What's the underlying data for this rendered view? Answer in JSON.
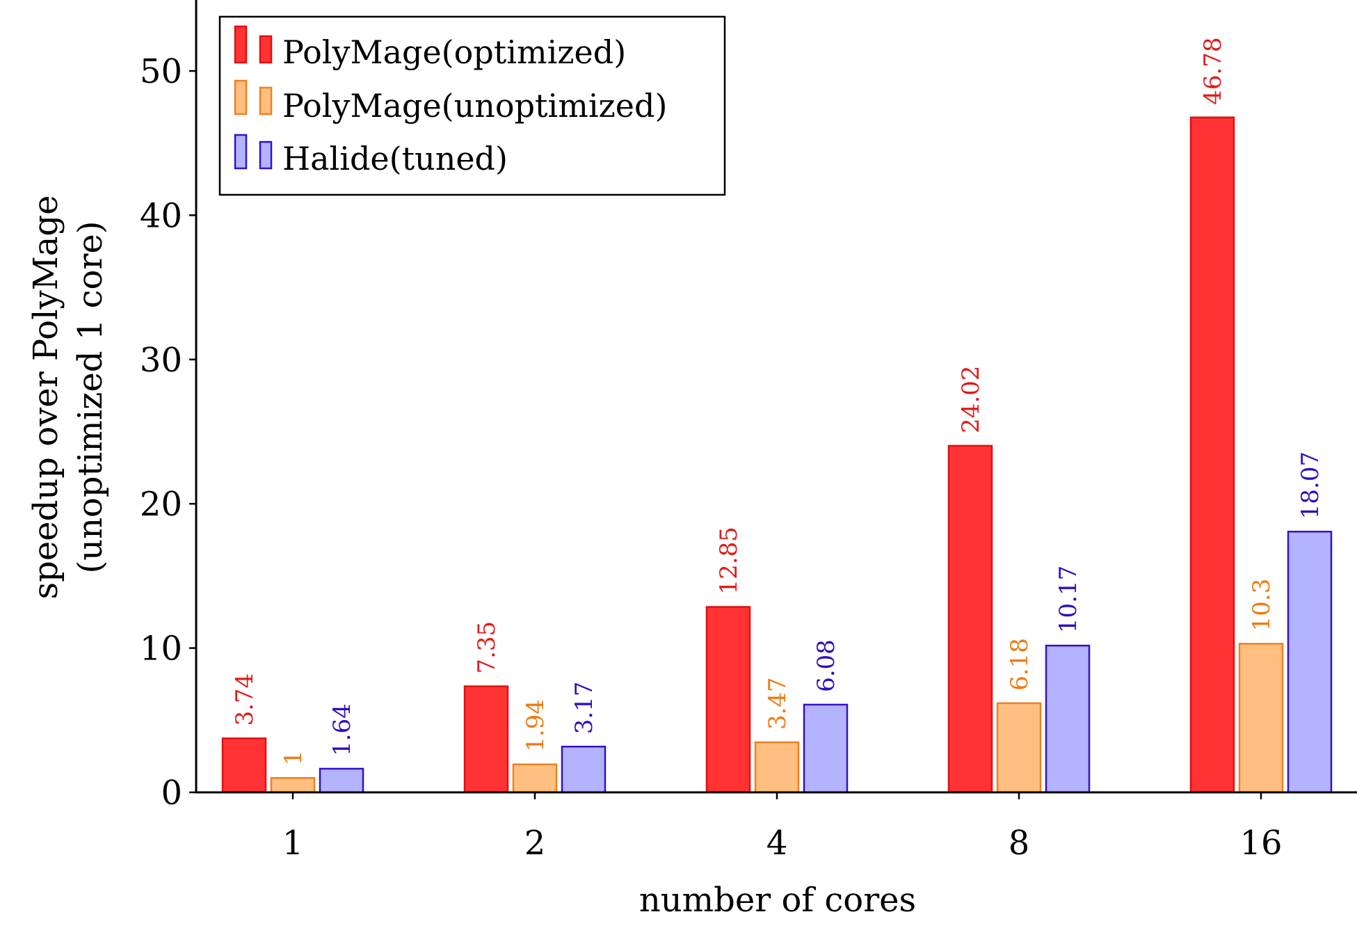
{
  "chart_data": {
    "type": "bar",
    "categories": [
      "1",
      "2",
      "4",
      "8",
      "16"
    ],
    "series": [
      {
        "name": "PolyMage(optimized)",
        "values": [
          3.74,
          7.35,
          12.85,
          24.02,
          46.78
        ],
        "labels": [
          "3.74",
          "7.35",
          "12.85",
          "24.02",
          "46.78"
        ],
        "fill": "#ff3333",
        "stroke": "#e01010",
        "text_color": "#e01a1a"
      },
      {
        "name": "PolyMage(unoptimized)",
        "values": [
          1,
          1.94,
          3.47,
          6.18,
          10.3
        ],
        "labels": [
          "1",
          "1.94",
          "3.47",
          "6.18",
          "10.3"
        ],
        "fill": "#ffbf80",
        "stroke": "#f08020",
        "text_color": "#f07a10"
      },
      {
        "name": "Halide(tuned)",
        "values": [
          1.64,
          3.17,
          6.08,
          10.17,
          18.07
        ],
        "labels": [
          "1.64",
          "3.17",
          "6.08",
          "10.17",
          "18.07"
        ],
        "fill": "#b3b3ff",
        "stroke": "#3311cc",
        "text_color": "#2a10c0"
      }
    ],
    "xlabel": "number of cores",
    "ylabel_lines": [
      "speedup over PolyMage",
      "(unoptimized 1 core)"
    ],
    "ylim": [
      0,
      55
    ],
    "yticks": [
      0,
      10,
      20,
      30,
      40,
      50
    ],
    "ytick_labels": [
      "0",
      "10",
      "20",
      "30",
      "40",
      "50"
    ],
    "legend_position": "top-left",
    "grid": false
  }
}
